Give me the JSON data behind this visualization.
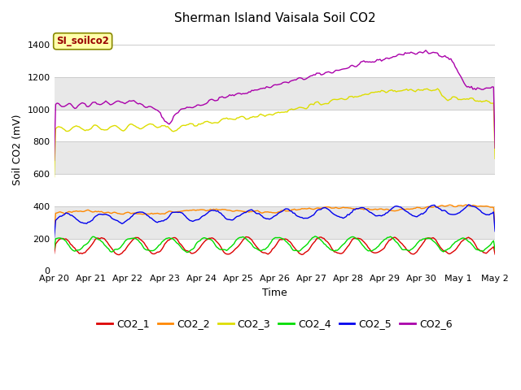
{
  "title": "Sherman Island Vaisala Soil CO2",
  "ylabel": "Soil CO2 (mV)",
  "xlabel": "Time",
  "label_text": "SI_soilco2",
  "legend_labels": [
    "CO2_1",
    "CO2_2",
    "CO2_3",
    "CO2_4",
    "CO2_5",
    "CO2_6"
  ],
  "colors": {
    "CO2_1": "#dd0000",
    "CO2_2": "#ff8800",
    "CO2_3": "#dddd00",
    "CO2_4": "#00dd00",
    "CO2_5": "#0000ee",
    "CO2_6": "#aa00aa"
  },
  "ylim": [
    0,
    1500
  ],
  "background_color": "#ffffff",
  "plot_bg_color": "#ffffff",
  "band_color_light": "#e8e8e8",
  "title_fontsize": 11,
  "axis_fontsize": 9,
  "tick_fontsize": 8,
  "legend_fontsize": 9
}
